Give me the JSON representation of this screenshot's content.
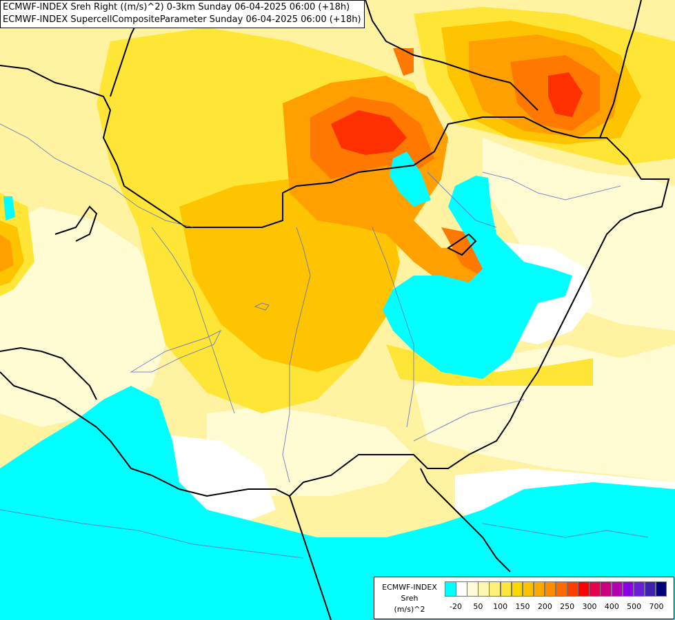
{
  "titles": {
    "line1": "ECMWF-INDEX Sreh Right ((m/s)^2) 0-3km Sunday 06-04-2025 06:00 (+18h)",
    "line2": "ECMWF-INDEX SupercellCompositeParameter Sunday 06-04-2025 06:00 (+18h)"
  },
  "legend": {
    "title_line1": "ECMWF-INDEX",
    "title_line2": "Sreh",
    "title_line3": "(m/s)^2",
    "colors": [
      "#00ffff",
      "#ffffff",
      "#fffbd9",
      "#fff7b0",
      "#fff07a",
      "#ffe63c",
      "#ffd700",
      "#ffc200",
      "#ffa800",
      "#ff8c00",
      "#ff6a00",
      "#ff3c00",
      "#ff0000",
      "#e6004d",
      "#cc0080",
      "#b300b3",
      "#8c00e6",
      "#6a1fd6",
      "#4020b0",
      "#00007a"
    ],
    "ticks": [
      "-20",
      "50",
      "100",
      "150",
      "200",
      "250",
      "300",
      "400",
      "500",
      "700"
    ]
  },
  "colors": {
    "cyan": "#00ffff",
    "white": "#ffffff",
    "pale": "#fffbd2",
    "lightyellow": "#fff5a3",
    "yellow": "#ffe636",
    "gold": "#ffcf00",
    "orange": "#ffa500",
    "darkorange": "#ff7a00",
    "red": "#ff3c00",
    "deepred": "#ff0f00"
  }
}
